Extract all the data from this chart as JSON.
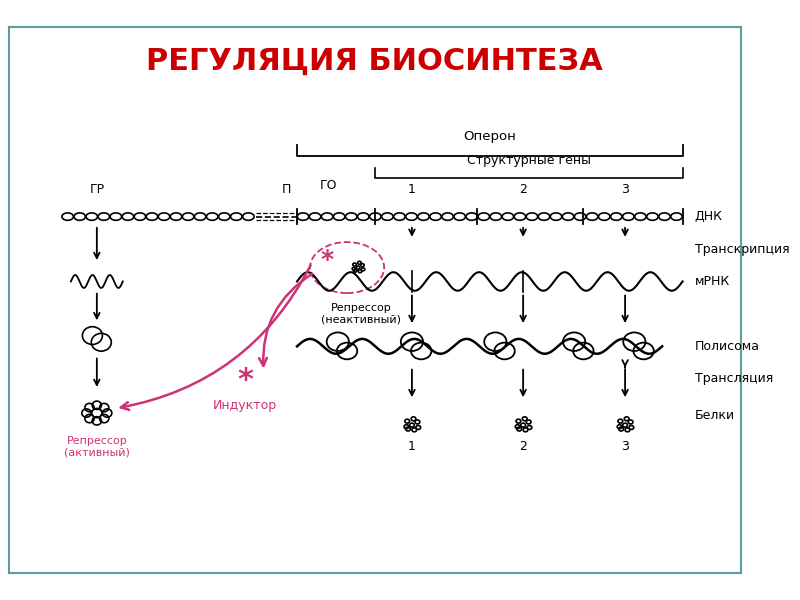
{
  "title": "РЕГУЛЯЦИЯ БИОСИНТЕЗА",
  "title_color": "#cc0000",
  "title_fontsize": 22,
  "bg_color": "#ffffff",
  "border_color": "#5f9ea0",
  "labels": {
    "operon": "Оперон",
    "structural_genes": "Структурные гены",
    "gr": "ГР",
    "p": "П",
    "go": "ГО",
    "gene1": "1",
    "gene2": "2",
    "gene3": "3",
    "dna": "ДНК",
    "transcription": "Транскрипция",
    "mrna": "мРНК",
    "polysome": "Полисома",
    "translation": "Трансляция",
    "proteins": "Белки",
    "repressor_inactive": "Репрессор\n(неактивный)",
    "repressor_active": "Репрессор\n(активный)",
    "inductor": "Индуктор"
  },
  "pink_color": "#cc3377",
  "black": "#000000",
  "dashed_box_color": "#cc3377"
}
